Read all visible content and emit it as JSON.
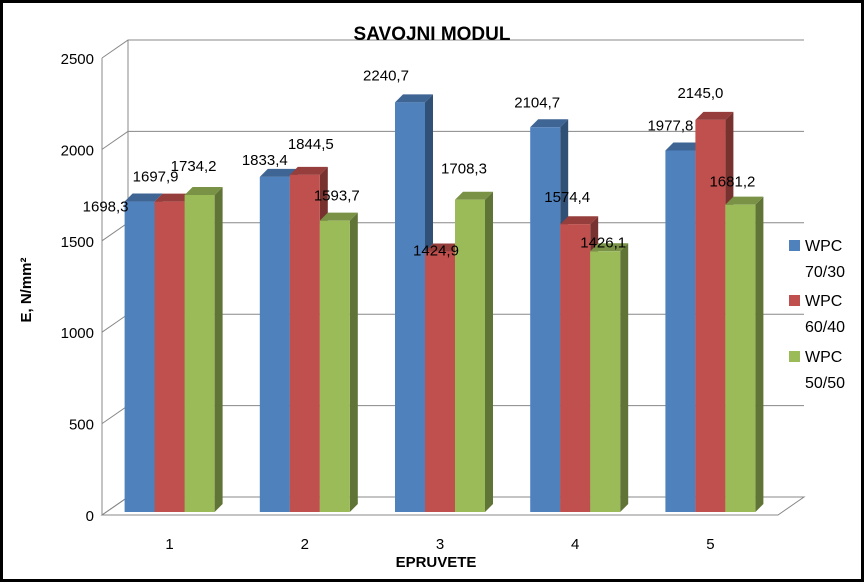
{
  "chart_data": {
    "type": "bar",
    "title": "SAVOJNI MODUL",
    "xlabel": "EPRUVETE",
    "ylabel": "E, N/mm²",
    "categories": [
      "1",
      "2",
      "3",
      "4",
      "5"
    ],
    "ylim": [
      0,
      2500
    ],
    "yticks": [
      "0",
      "500",
      "1000",
      "1500",
      "2000",
      "2500"
    ],
    "grid": true,
    "legend_position": "right",
    "series": [
      {
        "name": "WPC 70/30",
        "legend_lines": [
          "WPC",
          "70/30"
        ],
        "color": "#4F81BD",
        "values": [
          1698.3,
          1833.4,
          2240.7,
          2104.7,
          1977.8
        ],
        "labels": [
          "1698,3",
          "1833,4",
          "2240,7",
          "2104,7",
          "1977,8"
        ]
      },
      {
        "name": "WPC 60/40",
        "legend_lines": [
          "WPC",
          "60/40"
        ],
        "color": "#C0504D",
        "values": [
          1697.9,
          1844.5,
          1424.9,
          1574.4,
          2145.0
        ],
        "labels": [
          "1697,9",
          "1844,5",
          "1424,9",
          "1574,4",
          "2145,0"
        ]
      },
      {
        "name": "WPC 50/50",
        "legend_lines": [
          "WPC",
          "50/50"
        ],
        "color": "#9BBB59",
        "values": [
          1734.2,
          1593.7,
          1708.3,
          1426.1,
          1681.2
        ],
        "labels": [
          "1734,2",
          "1593,7",
          "1708,3",
          "1426,1",
          "1681,2"
        ]
      }
    ]
  }
}
